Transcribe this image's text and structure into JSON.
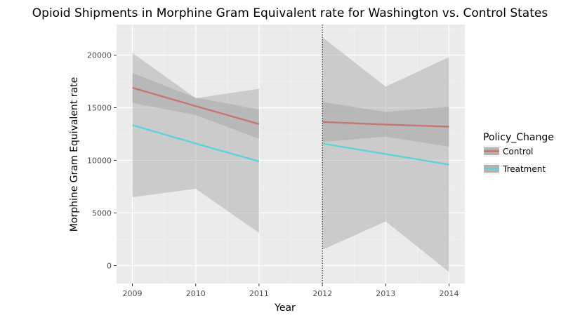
{
  "chart_data": {
    "type": "line",
    "title": "Opioid Shipments in Morphine Gram Equivalent rate for Washington vs. Control States",
    "xlabel": "Year",
    "ylabel": "Morphine Gram Equivalent rate",
    "x_ticks": [
      "2009",
      "2010",
      "2011",
      "2012",
      "2013",
      "2014"
    ],
    "y_ticks": [
      "0",
      "5000",
      "10000",
      "15000",
      "20000"
    ],
    "xlim": [
      2008.75,
      2014.25
    ],
    "ylim": [
      -1700,
      22900
    ],
    "grid": true,
    "policy_change_year": 2012,
    "legend": {
      "title": "Policy_Change",
      "position": "right",
      "entries": [
        "Control",
        "Treatment"
      ]
    },
    "series": [
      {
        "name": "Control",
        "color": "#c4776f",
        "segments": [
          {
            "x": [
              2009,
              2010,
              2011
            ],
            "y": [
              16900,
              15150,
              13450
            ],
            "lower": [
              15450,
              14300,
              12050
            ],
            "upper": [
              18300,
              15950,
              14850
            ]
          },
          {
            "x": [
              2012,
              2013,
              2014
            ],
            "y": [
              13650,
              13400,
              13200
            ],
            "lower": [
              11750,
              12250,
              11300
            ],
            "upper": [
              15550,
              14600,
              15100
            ]
          }
        ]
      },
      {
        "name": "Treatment",
        "color": "#5ed2d9",
        "segments": [
          {
            "x": [
              2009,
              2010,
              2011
            ],
            "y": [
              13350,
              11600,
              9900
            ],
            "lower": [
              6500,
              7300,
              3100
            ],
            "upper": [
              20200,
              15900,
              16800
            ]
          },
          {
            "x": [
              2012,
              2013,
              2014
            ],
            "y": [
              11600,
              10600,
              9600
            ],
            "lower": [
              1500,
              4200,
              -600
            ],
            "upper": [
              21700,
              17000,
              19800
            ]
          }
        ]
      }
    ]
  }
}
